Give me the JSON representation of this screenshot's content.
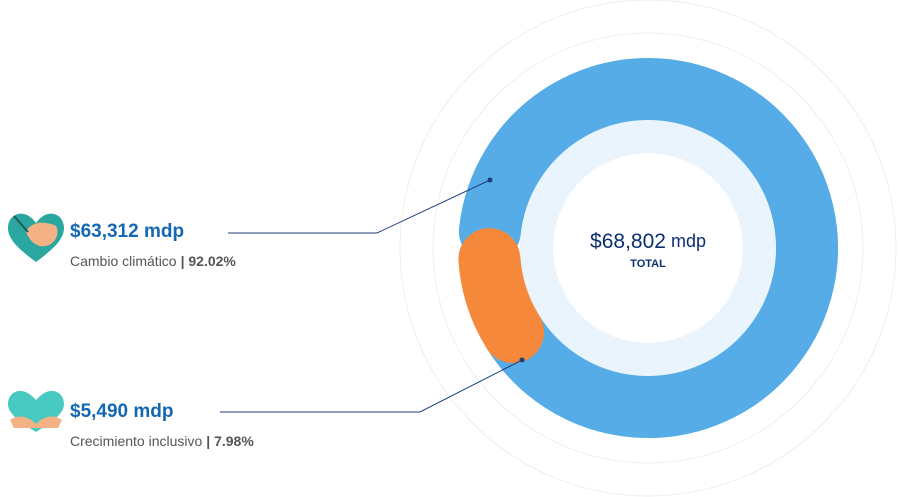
{
  "chart_data": {
    "type": "donut",
    "categories": [
      "Cambio climático",
      "Crecimiento inclusivo"
    ],
    "values": [
      63312,
      5490
    ],
    "value_labels": [
      "$63,312  mdp",
      "$5,490 mdp"
    ],
    "percent_labels": [
      "| 92.02%",
      "| 7.98%"
    ],
    "colors": [
      "#55ace6",
      "#f5883a"
    ],
    "total": 68802,
    "total_label": "$68,802",
    "total_unit": "mdp",
    "total_caption": "TOTAL"
  }
}
